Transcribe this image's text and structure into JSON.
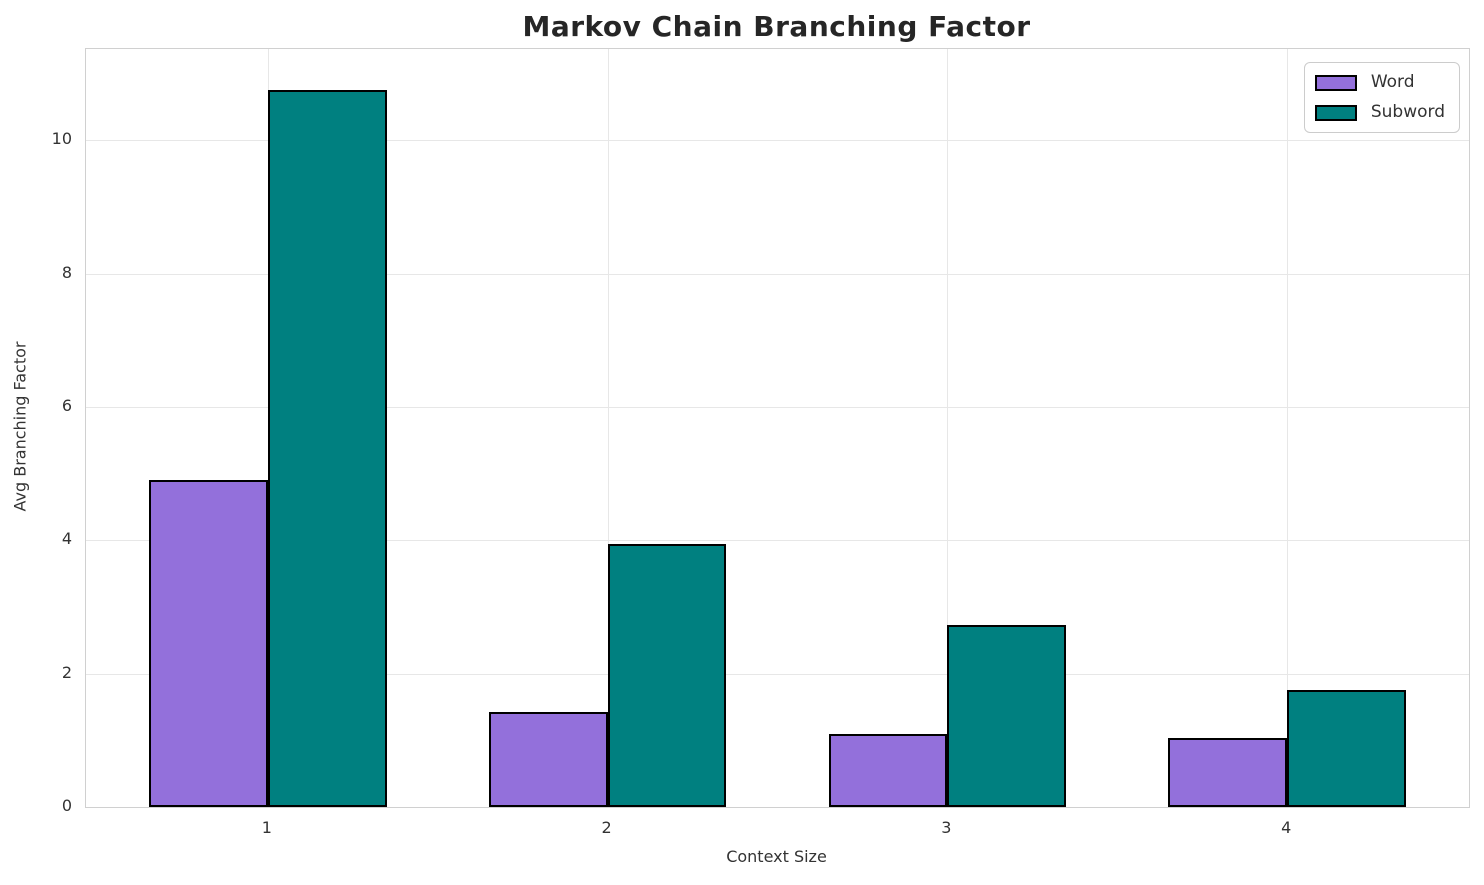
{
  "chart_data": {
    "type": "bar",
    "title": "Markov Chain Branching Factor",
    "xlabel": "Context Size",
    "ylabel": "Avg Branching Factor",
    "categories": [
      "1",
      "2",
      "3",
      "4"
    ],
    "series": [
      {
        "name": "Word",
        "color": "#9370DB",
        "values": [
          4.9,
          1.42,
          1.1,
          1.04
        ]
      },
      {
        "name": "Subword",
        "color": "#008080",
        "values": [
          10.76,
          3.95,
          2.73,
          1.76
        ]
      }
    ],
    "bar_edge_color": "#000000",
    "bar_width": 0.35,
    "xlim": [
      0.465,
      4.535
    ],
    "ylim": [
      0,
      11.37
    ],
    "yticks": [
      0,
      2,
      4,
      6,
      8,
      10
    ],
    "grid": true,
    "legend_position": "upper right"
  }
}
